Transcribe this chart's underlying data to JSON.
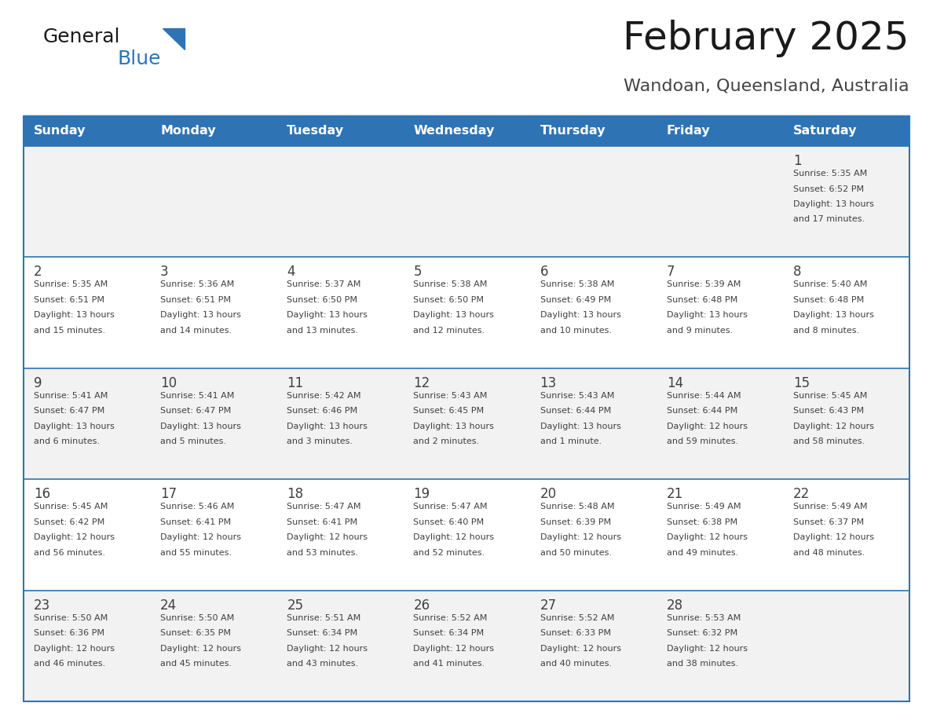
{
  "title": "February 2025",
  "subtitle": "Wandoan, Queensland, Australia",
  "days_of_week": [
    "Sunday",
    "Monday",
    "Tuesday",
    "Wednesday",
    "Thursday",
    "Friday",
    "Saturday"
  ],
  "header_bg": "#2E74B5",
  "header_text": "#FFFFFF",
  "row_bg_light": "#F2F2F2",
  "row_bg_white": "#FFFFFF",
  "separator_color": "#2E74B5",
  "cell_text_color": "#404040",
  "day_number_color": "#404040",
  "title_color": "#1a1a1a",
  "subtitle_color": "#444444",
  "calendar_data": [
    [
      null,
      null,
      null,
      null,
      null,
      null,
      {
        "day": 1,
        "sunrise": "5:35 AM",
        "sunset": "6:52 PM",
        "daylight_line1": "13 hours",
        "daylight_line2": "and 17 minutes."
      }
    ],
    [
      {
        "day": 2,
        "sunrise": "5:35 AM",
        "sunset": "6:51 PM",
        "daylight_line1": "13 hours",
        "daylight_line2": "and 15 minutes."
      },
      {
        "day": 3,
        "sunrise": "5:36 AM",
        "sunset": "6:51 PM",
        "daylight_line1": "13 hours",
        "daylight_line2": "and 14 minutes."
      },
      {
        "day": 4,
        "sunrise": "5:37 AM",
        "sunset": "6:50 PM",
        "daylight_line1": "13 hours",
        "daylight_line2": "and 13 minutes."
      },
      {
        "day": 5,
        "sunrise": "5:38 AM",
        "sunset": "6:50 PM",
        "daylight_line1": "13 hours",
        "daylight_line2": "and 12 minutes."
      },
      {
        "day": 6,
        "sunrise": "5:38 AM",
        "sunset": "6:49 PM",
        "daylight_line1": "13 hours",
        "daylight_line2": "and 10 minutes."
      },
      {
        "day": 7,
        "sunrise": "5:39 AM",
        "sunset": "6:48 PM",
        "daylight_line1": "13 hours",
        "daylight_line2": "and 9 minutes."
      },
      {
        "day": 8,
        "sunrise": "5:40 AM",
        "sunset": "6:48 PM",
        "daylight_line1": "13 hours",
        "daylight_line2": "and 8 minutes."
      }
    ],
    [
      {
        "day": 9,
        "sunrise": "5:41 AM",
        "sunset": "6:47 PM",
        "daylight_line1": "13 hours",
        "daylight_line2": "and 6 minutes."
      },
      {
        "day": 10,
        "sunrise": "5:41 AM",
        "sunset": "6:47 PM",
        "daylight_line1": "13 hours",
        "daylight_line2": "and 5 minutes."
      },
      {
        "day": 11,
        "sunrise": "5:42 AM",
        "sunset": "6:46 PM",
        "daylight_line1": "13 hours",
        "daylight_line2": "and 3 minutes."
      },
      {
        "day": 12,
        "sunrise": "5:43 AM",
        "sunset": "6:45 PM",
        "daylight_line1": "13 hours",
        "daylight_line2": "and 2 minutes."
      },
      {
        "day": 13,
        "sunrise": "5:43 AM",
        "sunset": "6:44 PM",
        "daylight_line1": "13 hours",
        "daylight_line2": "and 1 minute."
      },
      {
        "day": 14,
        "sunrise": "5:44 AM",
        "sunset": "6:44 PM",
        "daylight_line1": "12 hours",
        "daylight_line2": "and 59 minutes."
      },
      {
        "day": 15,
        "sunrise": "5:45 AM",
        "sunset": "6:43 PM",
        "daylight_line1": "12 hours",
        "daylight_line2": "and 58 minutes."
      }
    ],
    [
      {
        "day": 16,
        "sunrise": "5:45 AM",
        "sunset": "6:42 PM",
        "daylight_line1": "12 hours",
        "daylight_line2": "and 56 minutes."
      },
      {
        "day": 17,
        "sunrise": "5:46 AM",
        "sunset": "6:41 PM",
        "daylight_line1": "12 hours",
        "daylight_line2": "and 55 minutes."
      },
      {
        "day": 18,
        "sunrise": "5:47 AM",
        "sunset": "6:41 PM",
        "daylight_line1": "12 hours",
        "daylight_line2": "and 53 minutes."
      },
      {
        "day": 19,
        "sunrise": "5:47 AM",
        "sunset": "6:40 PM",
        "daylight_line1": "12 hours",
        "daylight_line2": "and 52 minutes."
      },
      {
        "day": 20,
        "sunrise": "5:48 AM",
        "sunset": "6:39 PM",
        "daylight_line1": "12 hours",
        "daylight_line2": "and 50 minutes."
      },
      {
        "day": 21,
        "sunrise": "5:49 AM",
        "sunset": "6:38 PM",
        "daylight_line1": "12 hours",
        "daylight_line2": "and 49 minutes."
      },
      {
        "day": 22,
        "sunrise": "5:49 AM",
        "sunset": "6:37 PM",
        "daylight_line1": "12 hours",
        "daylight_line2": "and 48 minutes."
      }
    ],
    [
      {
        "day": 23,
        "sunrise": "5:50 AM",
        "sunset": "6:36 PM",
        "daylight_line1": "12 hours",
        "daylight_line2": "and 46 minutes."
      },
      {
        "day": 24,
        "sunrise": "5:50 AM",
        "sunset": "6:35 PM",
        "daylight_line1": "12 hours",
        "daylight_line2": "and 45 minutes."
      },
      {
        "day": 25,
        "sunrise": "5:51 AM",
        "sunset": "6:34 PM",
        "daylight_line1": "12 hours",
        "daylight_line2": "and 43 minutes."
      },
      {
        "day": 26,
        "sunrise": "5:52 AM",
        "sunset": "6:34 PM",
        "daylight_line1": "12 hours",
        "daylight_line2": "and 41 minutes."
      },
      {
        "day": 27,
        "sunrise": "5:52 AM",
        "sunset": "6:33 PM",
        "daylight_line1": "12 hours",
        "daylight_line2": "and 40 minutes."
      },
      {
        "day": 28,
        "sunrise": "5:53 AM",
        "sunset": "6:32 PM",
        "daylight_line1": "12 hours",
        "daylight_line2": "and 38 minutes."
      },
      null
    ]
  ]
}
